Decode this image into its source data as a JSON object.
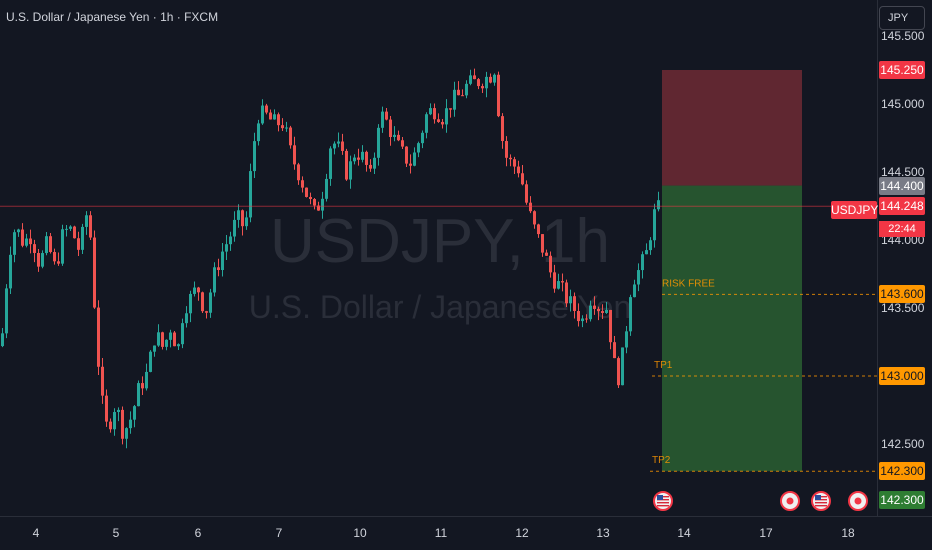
{
  "header": {
    "symbol_title": "U.S. Dollar / Japanese Yen · 1h · FXCM",
    "currency_button": "JPY"
  },
  "watermark": {
    "symbol": "USDJPY, 1h",
    "description": "U.S. Dollar / Japanese Yen"
  },
  "price_axis": {
    "ticks": [
      "145.500",
      "145.000",
      "144.500",
      "144.000",
      "143.500",
      "142.500"
    ]
  },
  "time_axis": {
    "ticks": [
      "4",
      "5",
      "6",
      "7",
      "10",
      "11",
      "12",
      "13",
      "14",
      "17",
      "18"
    ]
  },
  "position": {
    "type": "short",
    "entry": 144.4,
    "stop": 145.25,
    "target": 142.3,
    "stop_label": "145.250",
    "entry_label": "144.400",
    "risk_color": "#6e2a34",
    "reward_color": "#2e6934"
  },
  "levels": [
    {
      "name": "RISK FREE",
      "price_label": "143.600",
      "value": 143.6,
      "color": "#ff9800"
    },
    {
      "name": "TP1",
      "price_label": "143.000",
      "value": 143.0,
      "color": "#ff9800"
    },
    {
      "name": "TP2",
      "price_label": "142.300",
      "value": 142.3,
      "color": "#ff9800"
    }
  ],
  "current_price": {
    "symbol_tag": "USDJPY",
    "price_label": "144.248",
    "countdown": "22:44",
    "value": 144.248,
    "color": "#f23645"
  },
  "target_price_label": "142.300",
  "event_icons": [
    "us-flag-icon",
    "event-circle-icon",
    "us-flag-icon",
    "event-circle-icon"
  ],
  "colors": {
    "up": "#26a69a",
    "down": "#ef5350",
    "background": "#131722",
    "text": "#d1d4dc",
    "gray_label": "#787b86",
    "target_label": "#2e7d32"
  },
  "chart_data": {
    "type": "candlestick",
    "title": "U.S. Dollar / Japanese Yen · 1h · FXCM",
    "xlabel": "",
    "ylabel": "",
    "ylim": [
      142.2,
      145.6
    ],
    "x_categories": [
      "4",
      "5",
      "6",
      "7",
      "10",
      "11",
      "12",
      "13",
      "14",
      "17",
      "18"
    ],
    "close_path": [
      [
        0,
        143.22
      ],
      [
        4,
        143.6
      ],
      [
        8,
        143.92
      ],
      [
        14,
        144.1
      ],
      [
        22,
        143.98
      ],
      [
        30,
        144.04
      ],
      [
        38,
        143.82
      ],
      [
        46,
        143.98
      ],
      [
        54,
        143.78
      ],
      [
        62,
        144.06
      ],
      [
        70,
        144.08
      ],
      [
        78,
        143.92
      ],
      [
        86,
        144.22
      ],
      [
        90,
        143.96
      ],
      [
        94,
        143.4
      ],
      [
        98,
        143.0
      ],
      [
        102,
        142.72
      ],
      [
        106,
        142.6
      ],
      [
        114,
        142.8
      ],
      [
        122,
        142.58
      ],
      [
        130,
        142.7
      ],
      [
        138,
        142.92
      ],
      [
        146,
        143.02
      ],
      [
        154,
        143.32
      ],
      [
        162,
        143.2
      ],
      [
        170,
        143.38
      ],
      [
        176,
        143.16
      ],
      [
        182,
        143.5
      ],
      [
        190,
        143.58
      ],
      [
        196,
        143.66
      ],
      [
        204,
        143.46
      ],
      [
        212,
        143.72
      ],
      [
        220,
        143.9
      ],
      [
        228,
        144.02
      ],
      [
        236,
        144.16
      ],
      [
        244,
        144.08
      ],
      [
        250,
        144.55
      ],
      [
        256,
        144.92
      ],
      [
        264,
        144.92
      ],
      [
        272,
        144.86
      ],
      [
        282,
        144.86
      ],
      [
        290,
        144.62
      ],
      [
        298,
        144.48
      ],
      [
        306,
        144.32
      ],
      [
        314,
        144.18
      ],
      [
        322,
        144.38
      ],
      [
        330,
        144.74
      ],
      [
        338,
        144.66
      ],
      [
        346,
        144.48
      ],
      [
        354,
        144.66
      ],
      [
        362,
        144.6
      ],
      [
        370,
        144.44
      ],
      [
        378,
        144.94
      ],
      [
        386,
        144.86
      ],
      [
        394,
        144.72
      ],
      [
        402,
        144.62
      ],
      [
        410,
        144.56
      ],
      [
        418,
        144.74
      ],
      [
        426,
        144.94
      ],
      [
        434,
        144.96
      ],
      [
        442,
        144.9
      ],
      [
        450,
        145.02
      ],
      [
        458,
        145.06
      ],
      [
        466,
        145.14
      ],
      [
        474,
        145.16
      ],
      [
        482,
        145.18
      ],
      [
        490,
        145.22
      ],
      [
        494,
        145.28
      ],
      [
        498,
        144.86
      ],
      [
        504,
        144.62
      ],
      [
        510,
        144.56
      ],
      [
        518,
        144.52
      ],
      [
        526,
        144.24
      ],
      [
        534,
        144.06
      ],
      [
        542,
        143.92
      ],
      [
        550,
        143.74
      ],
      [
        558,
        143.66
      ],
      [
        566,
        143.56
      ],
      [
        574,
        143.48
      ],
      [
        582,
        143.4
      ],
      [
        590,
        143.6
      ],
      [
        598,
        143.5
      ],
      [
        606,
        143.5
      ],
      [
        612,
        143.1
      ],
      [
        618,
        142.98
      ],
      [
        624,
        143.3
      ],
      [
        630,
        143.7
      ],
      [
        638,
        143.78
      ],
      [
        646,
        143.92
      ],
      [
        652,
        144.18
      ],
      [
        656,
        144.22
      ],
      [
        660,
        144.248
      ]
    ]
  }
}
